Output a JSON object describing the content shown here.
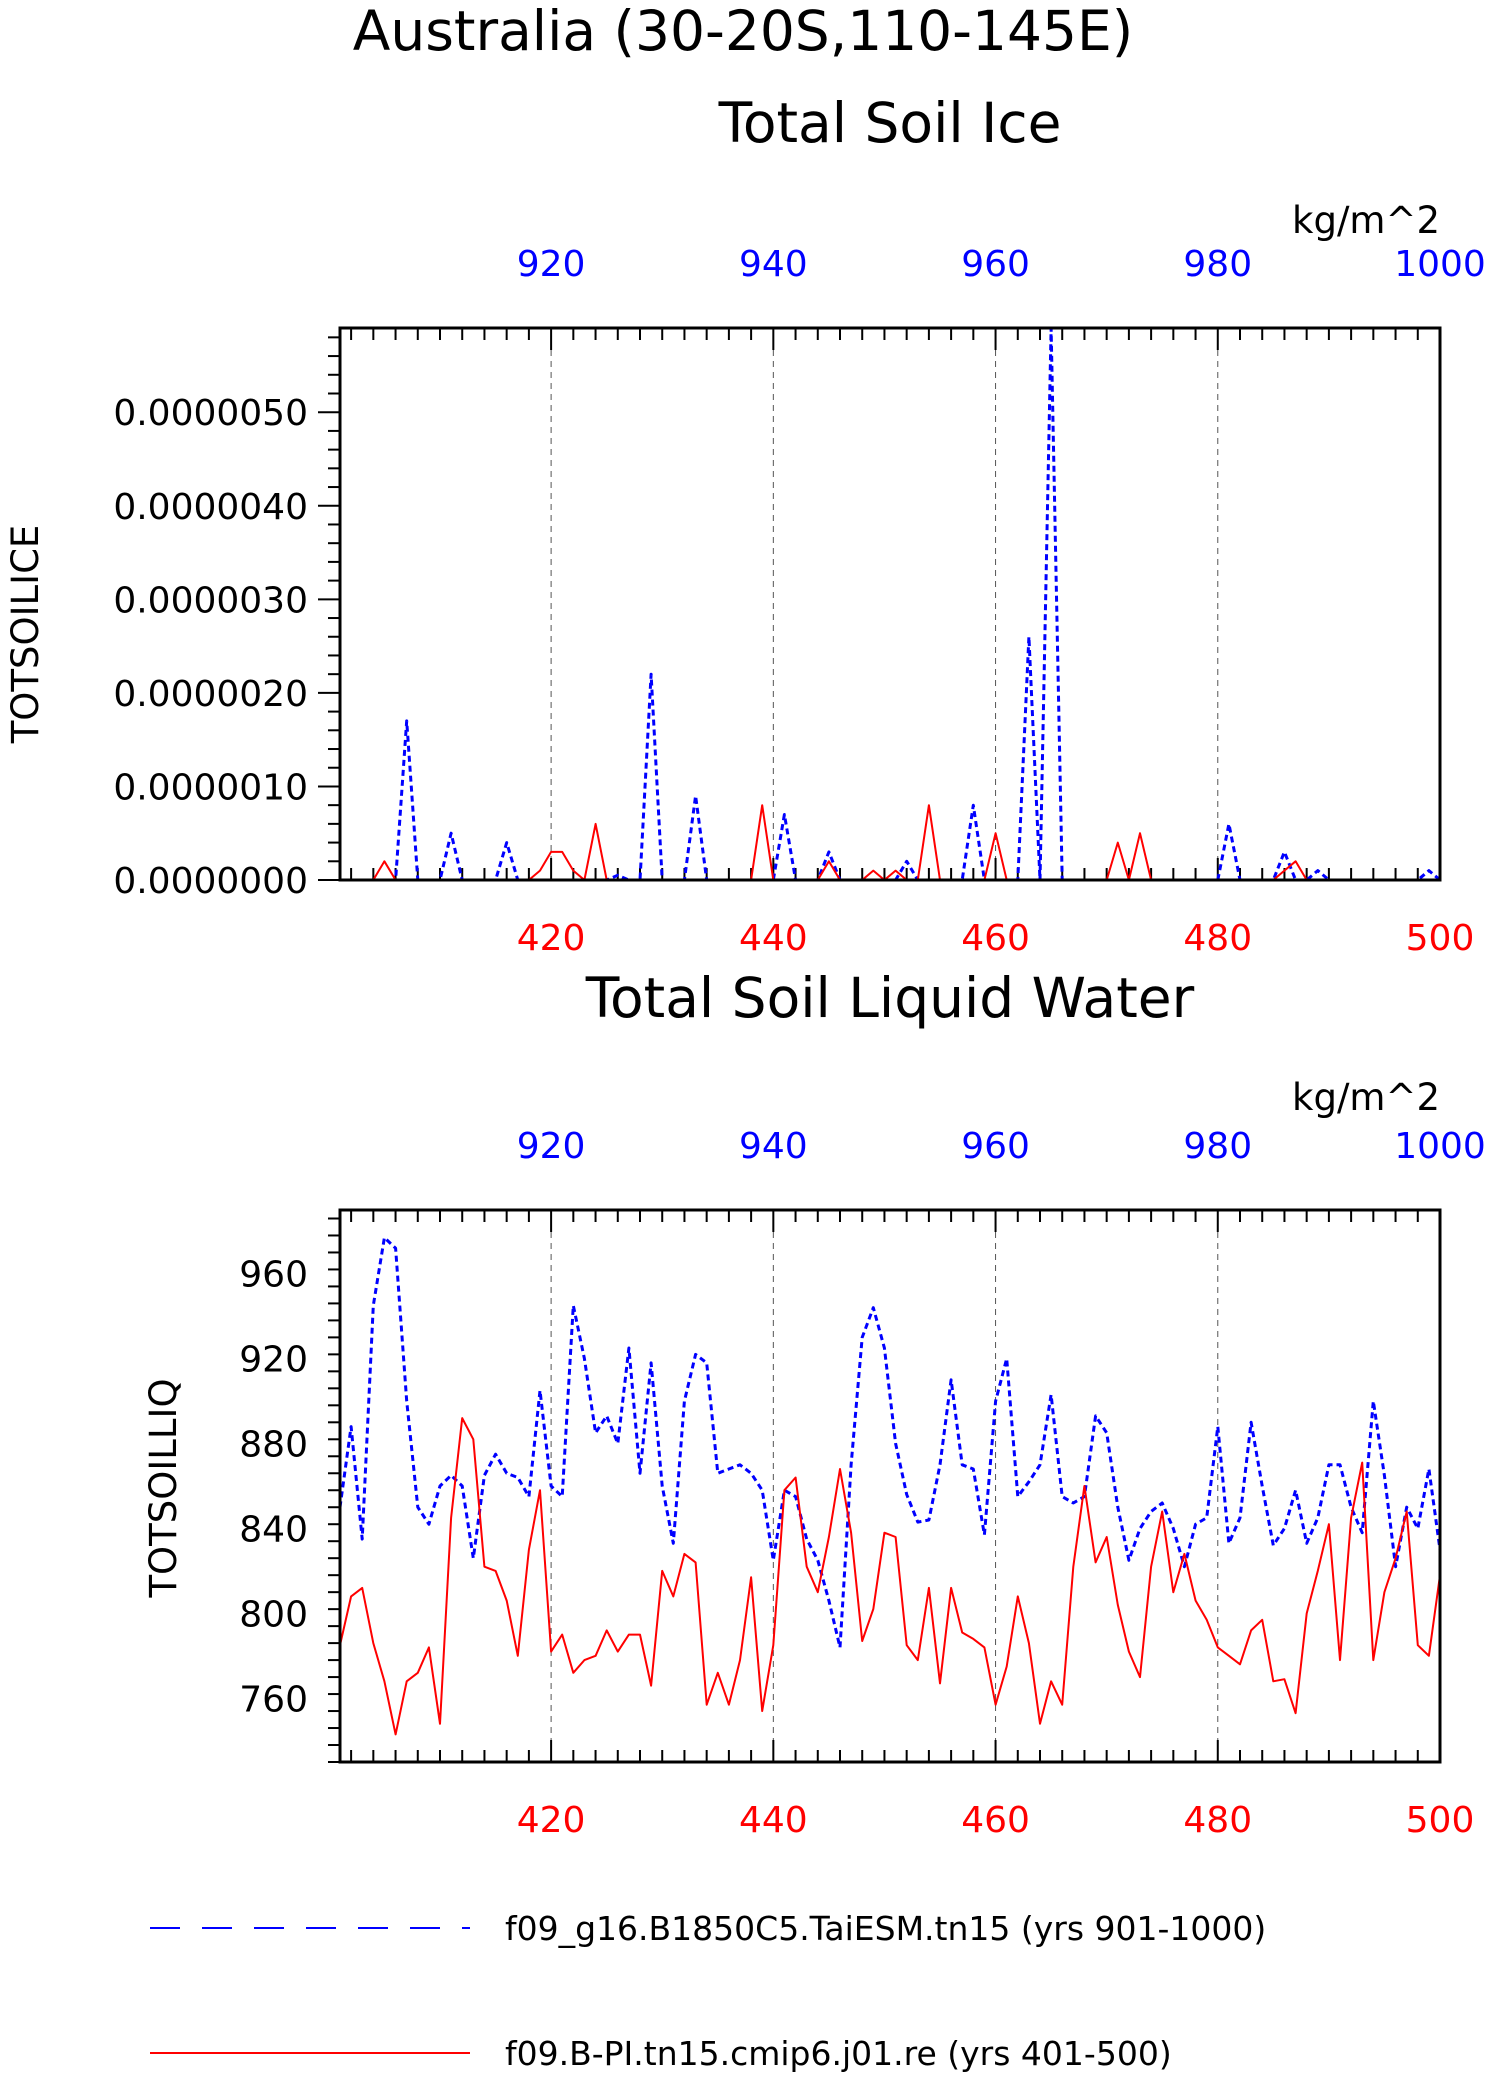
{
  "figure": {
    "title_line1": "Australia (30-20S,110-145E)",
    "legend": [
      {
        "label": "f09_g16.B1850C5.TaiESM.tn15 (yrs 901-1000)",
        "color": "#0000ff",
        "dash": "dashed"
      },
      {
        "label": "f09.B-PI.tn15.cmip6.j01.re (yrs 401-500)",
        "color": "#ff0000",
        "dash": "solid"
      }
    ]
  },
  "chart_data": [
    {
      "type": "line",
      "title": "Total Soil Ice",
      "ylabel": "TOTSOILICE",
      "units": "kg/m^2",
      "ylim": [
        0,
        5.9e-06
      ],
      "yticks": [
        0,
        1e-06,
        2e-06,
        3e-06,
        4e-06,
        5e-06
      ],
      "ytick_labels": [
        "0.0000000",
        "0.0000010",
        "0.0000020",
        "0.0000030",
        "0.0000040",
        "0.0000050"
      ],
      "x_bottom": {
        "range": [
          401,
          500
        ],
        "ticks": [
          420,
          440,
          460,
          480,
          500
        ],
        "color": "#ff0000"
      },
      "x_top": {
        "range": [
          901,
          1000
        ],
        "ticks": [
          920,
          940,
          960,
          980,
          1000
        ],
        "color": "#0000ff"
      },
      "grid": "vertical dashed at major ticks",
      "series": [
        {
          "color": "#0000ff",
          "dash": "dashed",
          "axis": "top",
          "x": [
            901,
            902,
            903,
            904,
            905,
            906,
            907,
            908,
            909,
            910,
            911,
            912,
            913,
            914,
            915,
            916,
            917,
            918,
            919,
            920,
            921,
            922,
            923,
            924,
            925,
            926,
            927,
            928,
            929,
            930,
            931,
            932,
            933,
            934,
            935,
            936,
            937,
            938,
            939,
            940,
            941,
            942,
            943,
            944,
            945,
            946,
            947,
            948,
            949,
            950,
            951,
            952,
            953,
            954,
            955,
            956,
            957,
            958,
            959,
            960,
            961,
            962,
            963,
            964,
            965,
            966,
            967,
            968,
            969,
            970,
            971,
            972,
            973,
            974,
            975,
            976,
            977,
            978,
            979,
            980,
            981,
            982,
            983,
            984,
            985,
            986,
            987,
            988,
            989,
            990,
            991,
            992,
            993,
            994,
            995,
            996,
            997,
            998,
            999,
            1000
          ],
          "y": [
            0,
            0,
            0,
            0,
            0,
            0,
            1.7e-06,
            0,
            0,
            0,
            5e-07,
            0,
            0,
            0,
            0,
            4e-07,
            0,
            0,
            0,
            0,
            0,
            0,
            0,
            0,
            0,
            5e-08,
            0,
            0,
            2.2e-06,
            0,
            0,
            0,
            9e-07,
            0,
            0,
            0,
            0,
            0,
            0,
            0,
            7e-07,
            0,
            0,
            0,
            3e-07,
            0,
            0,
            0,
            0,
            0,
            0,
            2e-07,
            0,
            0,
            0,
            0,
            0,
            8e-07,
            0,
            0,
            0,
            0,
            2.6e-06,
            0,
            5.9e-06,
            0,
            0,
            0,
            0,
            0,
            0,
            0,
            0,
            0,
            0,
            0,
            0,
            0,
            0,
            0,
            6e-07,
            0,
            0,
            0,
            0,
            3e-07,
            0,
            0,
            1e-07,
            0,
            0,
            0,
            0,
            0,
            0,
            0,
            0,
            0,
            1e-07,
            0
          ]
        },
        {
          "color": "#ff0000",
          "dash": "solid",
          "axis": "bottom",
          "x": [
            401,
            402,
            403,
            404,
            405,
            406,
            407,
            408,
            409,
            410,
            411,
            412,
            413,
            414,
            415,
            416,
            417,
            418,
            419,
            420,
            421,
            422,
            423,
            424,
            425,
            426,
            427,
            428,
            429,
            430,
            431,
            432,
            433,
            434,
            435,
            436,
            437,
            438,
            439,
            440,
            441,
            442,
            443,
            444,
            445,
            446,
            447,
            448,
            449,
            450,
            451,
            452,
            453,
            454,
            455,
            456,
            457,
            458,
            459,
            460,
            461,
            462,
            463,
            464,
            465,
            466,
            467,
            468,
            469,
            470,
            471,
            472,
            473,
            474,
            475,
            476,
            477,
            478,
            479,
            480,
            481,
            482,
            483,
            484,
            485,
            486,
            487,
            488,
            489,
            490,
            491,
            492,
            493,
            494,
            495,
            496,
            497,
            498,
            499,
            500
          ],
          "y": [
            0,
            0,
            0,
            0,
            2e-07,
            0,
            0,
            0,
            0,
            0,
            0,
            0,
            0,
            0,
            0,
            0,
            0,
            0,
            1e-07,
            3e-07,
            3e-07,
            1e-07,
            0,
            6e-07,
            0,
            0,
            0,
            0,
            0,
            0,
            0,
            0,
            0,
            0,
            0,
            0,
            0,
            0,
            8e-07,
            0,
            0,
            0,
            0,
            0,
            2e-07,
            0,
            0,
            0,
            1e-07,
            0,
            1e-07,
            0,
            0,
            8e-07,
            0,
            0,
            0,
            0,
            0,
            5e-07,
            0,
            0,
            0,
            0,
            0,
            0,
            0,
            0,
            0,
            0,
            4e-07,
            0,
            5e-07,
            0,
            0,
            0,
            0,
            0,
            0,
            0,
            0,
            0,
            0,
            0,
            0,
            1e-07,
            2e-07,
            0,
            0,
            0,
            0,
            0,
            0,
            0,
            0,
            0,
            0,
            0,
            0,
            0
          ]
        }
      ]
    },
    {
      "type": "line",
      "title": "Total Soil Liquid Water",
      "ylabel": "TOTSOILLIQ",
      "units": "kg/m^2",
      "ylim": [
        730,
        990
      ],
      "yticks": [
        760,
        800,
        840,
        880,
        920,
        960
      ],
      "ytick_labels": [
        "760",
        "800",
        "840",
        "880",
        "920",
        "960"
      ],
      "x_bottom": {
        "range": [
          401,
          500
        ],
        "ticks": [
          420,
          440,
          460,
          480,
          500
        ],
        "color": "#ff0000"
      },
      "x_top": {
        "range": [
          901,
          1000
        ],
        "ticks": [
          920,
          940,
          960,
          980,
          1000
        ],
        "color": "#0000ff"
      },
      "grid": "vertical dashed at major ticks",
      "series": [
        {
          "color": "#0000ff",
          "dash": "dashed",
          "axis": "top",
          "x": [
            901,
            902,
            903,
            904,
            905,
            906,
            907,
            908,
            909,
            910,
            911,
            912,
            913,
            914,
            915,
            916,
            917,
            918,
            919,
            920,
            921,
            922,
            923,
            924,
            925,
            926,
            927,
            928,
            929,
            930,
            931,
            932,
            933,
            934,
            935,
            936,
            937,
            938,
            939,
            940,
            941,
            942,
            943,
            944,
            945,
            946,
            947,
            948,
            949,
            950,
            951,
            952,
            953,
            954,
            955,
            956,
            957,
            958,
            959,
            960,
            961,
            962,
            963,
            964,
            965,
            966,
            967,
            968,
            969,
            970,
            971,
            972,
            973,
            974,
            975,
            976,
            977,
            978,
            979,
            980,
            981,
            982,
            983,
            984,
            985,
            986,
            987,
            988,
            989,
            990,
            991,
            992,
            993,
            994,
            995,
            996,
            997,
            998,
            999,
            1000
          ],
          "y": [
            850,
            888,
            835,
            945,
            977,
            972,
            900,
            850,
            842,
            860,
            865,
            860,
            826,
            865,
            875,
            866,
            864,
            855,
            905,
            860,
            855,
            945,
            920,
            885,
            893,
            880,
            925,
            866,
            918,
            860,
            833,
            900,
            922,
            918,
            866,
            868,
            870,
            866,
            858,
            825,
            858,
            855,
            835,
            825,
            806,
            784,
            870,
            930,
            944,
            925,
            880,
            856,
            843,
            844,
            870,
            910,
            870,
            868,
            837,
            900,
            920,
            855,
            862,
            870,
            903,
            855,
            852,
            855,
            893,
            885,
            850,
            825,
            840,
            848,
            852,
            840,
            822,
            842,
            845,
            888,
            833,
            845,
            890,
            860,
            832,
            840,
            858,
            833,
            845,
            870,
            870,
            850,
            838,
            900,
            865,
            822,
            850,
            840,
            868,
            830
          ]
        },
        {
          "color": "#ff0000",
          "dash": "solid",
          "axis": "bottom",
          "x": [
            401,
            402,
            403,
            404,
            405,
            406,
            407,
            408,
            409,
            410,
            411,
            412,
            413,
            414,
            415,
            416,
            417,
            418,
            419,
            420,
            421,
            422,
            423,
            424,
            425,
            426,
            427,
            428,
            429,
            430,
            431,
            432,
            433,
            434,
            435,
            436,
            437,
            438,
            439,
            440,
            441,
            442,
            443,
            444,
            445,
            446,
            447,
            448,
            449,
            450,
            451,
            452,
            453,
            454,
            455,
            456,
            457,
            458,
            459,
            460,
            461,
            462,
            463,
            464,
            465,
            466,
            467,
            468,
            469,
            470,
            471,
            472,
            473,
            474,
            475,
            476,
            477,
            478,
            479,
            480,
            481,
            482,
            483,
            484,
            485,
            486,
            487,
            488,
            489,
            490,
            491,
            492,
            493,
            494,
            495,
            496,
            497,
            498,
            499,
            500
          ],
          "y": [
            785,
            808,
            812,
            786,
            768,
            743,
            768,
            772,
            784,
            748,
            845,
            892,
            882,
            822,
            820,
            806,
            780,
            830,
            858,
            782,
            790,
            772,
            778,
            780,
            792,
            782,
            790,
            790,
            766,
            820,
            808,
            828,
            824,
            757,
            772,
            757,
            778,
            817,
            754,
            785,
            858,
            864,
            822,
            810,
            836,
            868,
            838,
            787,
            802,
            838,
            836,
            785,
            778,
            812,
            767,
            812,
            791,
            788,
            784,
            757,
            775,
            808,
            786,
            748,
            768,
            757,
            822,
            860,
            824,
            836,
            804,
            782,
            770,
            822,
            848,
            810,
            828,
            806,
            797,
            784,
            780,
            776,
            792,
            797,
            768,
            769,
            753,
            800,
            820,
            842,
            778,
            845,
            871,
            778,
            810,
            826,
            848,
            785,
            780,
            818
          ]
        }
      ]
    }
  ]
}
